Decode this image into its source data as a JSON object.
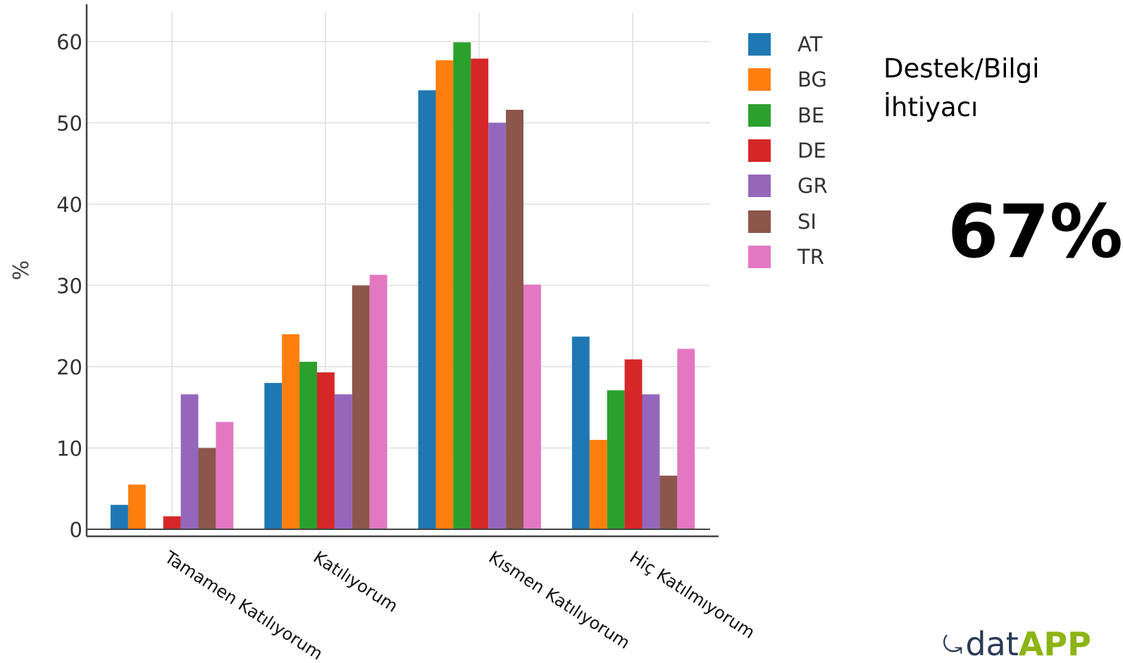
{
  "chart_data": {
    "type": "bar",
    "ylabel": "%",
    "ylim": [
      0,
      64
    ],
    "yticks": [
      0,
      10,
      20,
      30,
      40,
      50,
      60
    ],
    "grid": true,
    "legend_placement": "right",
    "categories": [
      "Tamamen Katılıyorum",
      "Katılıyorum",
      "Kısmen Katılıyorum",
      "Hiç Katılmıyorum"
    ],
    "series": [
      {
        "name": "AT",
        "color": "#1f77b4",
        "values": [
          3.0,
          18.0,
          54.0,
          23.7
        ]
      },
      {
        "name": "BG",
        "color": "#ff7f0e",
        "values": [
          5.5,
          24.0,
          57.7,
          11.0
        ]
      },
      {
        "name": "BE",
        "color": "#2ca02c",
        "values": [
          0,
          20.6,
          59.9,
          17.1
        ]
      },
      {
        "name": "DE",
        "color": "#d62728",
        "values": [
          1.6,
          19.3,
          57.9,
          20.9
        ]
      },
      {
        "name": "GR",
        "color": "#9467bd",
        "values": [
          16.6,
          16.6,
          50.0,
          16.6
        ]
      },
      {
        "name": "SI",
        "color": "#8c564b",
        "values": [
          10.0,
          30.0,
          51.6,
          6.6
        ]
      },
      {
        "name": "TR",
        "color": "#e377c2",
        "values": [
          13.2,
          31.3,
          30.1,
          22.2
        ]
      }
    ]
  },
  "side_panel": {
    "title_line1": "Destek/Bilgi",
    "title_line2": "İhtiyacı",
    "big_value": "67%"
  },
  "logo": {
    "part1": "dat",
    "part2": "APP",
    "color_dark": "#2b3a55",
    "color_green": "#8cb414"
  }
}
